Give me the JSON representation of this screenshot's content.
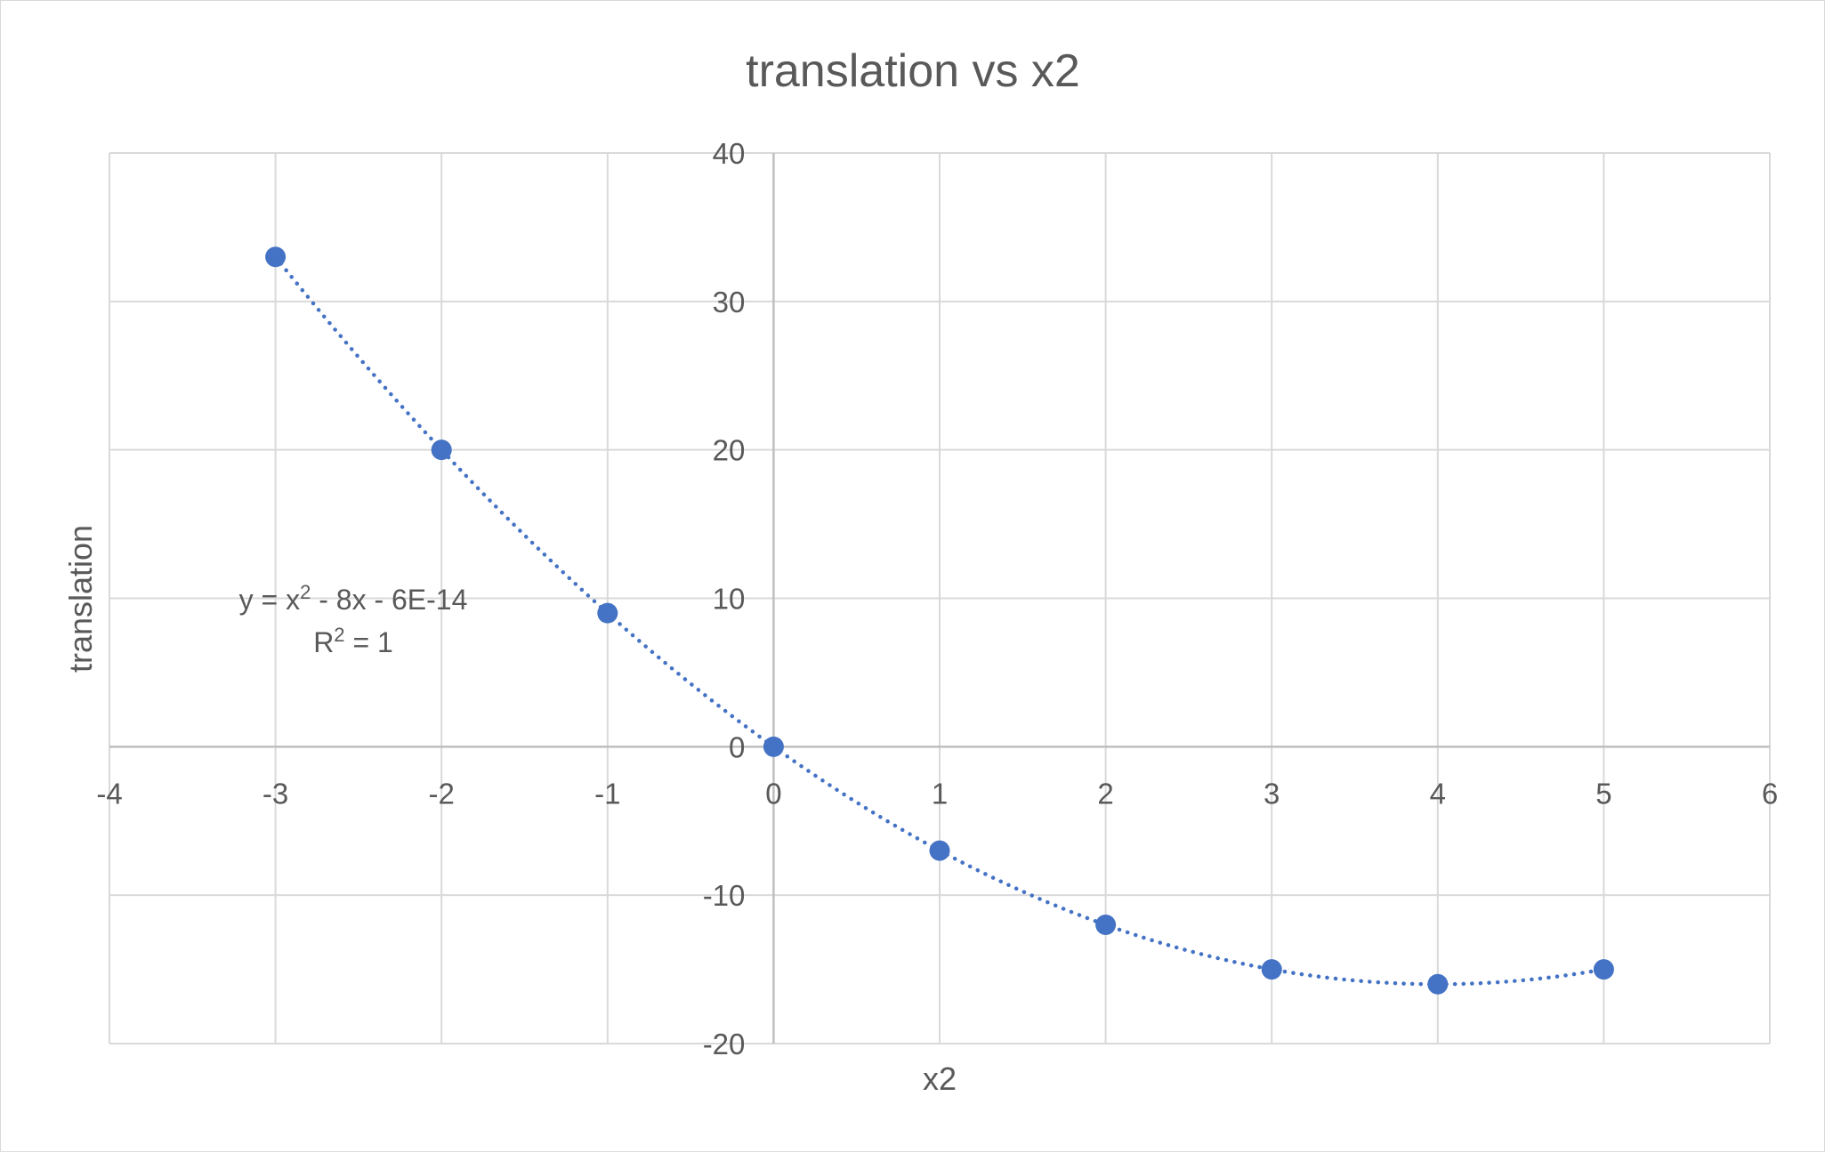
{
  "chart_data": {
    "type": "scatter",
    "title": "translation vs x2",
    "xlabel": "x2",
    "ylabel": "translation",
    "xlim": [
      -4,
      6
    ],
    "ylim": [
      -20,
      40
    ],
    "x_ticks": [
      -4,
      -3,
      -2,
      -1,
      0,
      1,
      2,
      3,
      4,
      5,
      6
    ],
    "y_ticks": [
      -20,
      -10,
      0,
      10,
      20,
      30,
      40
    ],
    "grid": true,
    "series": [
      {
        "x": [
          -3,
          -2,
          -1,
          0,
          1,
          2,
          3,
          4,
          5
        ],
        "y": [
          33,
          20,
          9,
          0,
          -7,
          -12,
          -15,
          -16,
          -15
        ],
        "color": "#4472c4"
      }
    ],
    "trendline": {
      "type": "polynomial",
      "order": 2,
      "coefficients": [
        1,
        -8,
        -6e-14
      ],
      "style": "dotted",
      "color": "#4472c4",
      "equation": {
        "lhs": "y = x",
        "sup1": "2",
        "rhs": " - 8x - 6E-14"
      },
      "r2": {
        "lhs": "R",
        "sup": "2",
        "rhs": " = 1"
      }
    }
  }
}
